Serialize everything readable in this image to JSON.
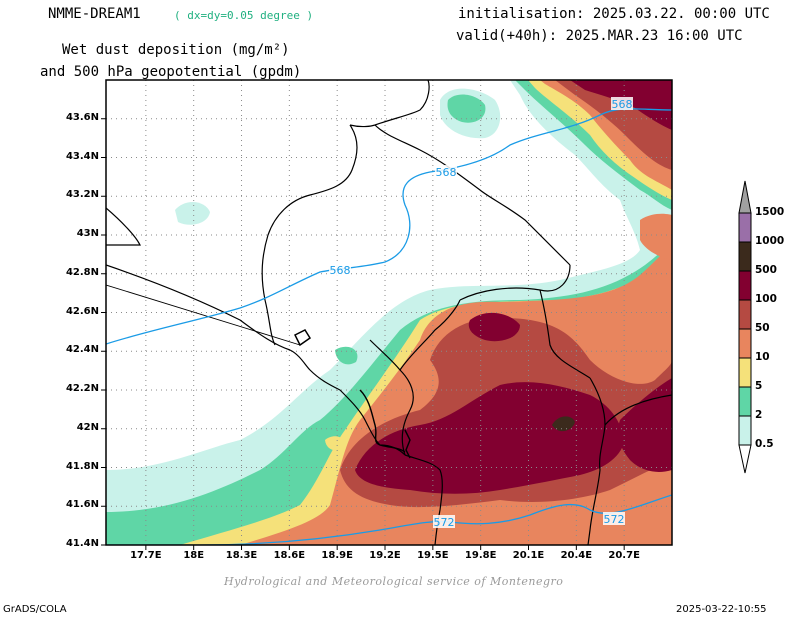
{
  "header": {
    "model": "NMME-DREAM1",
    "resolution": "( dx=dy=0.05 degree )",
    "title_line1": "Wet dust deposition (mg/m²)",
    "title_line2": "and 500 hPa geopotential (gpdm)",
    "init": "initialisation: 2025.03.22. 00:00 UTC",
    "valid": "valid(+40h): 2025.MAR.23 16:00 UTC"
  },
  "axes": {
    "lat_labels": [
      "43.6N",
      "43.4N",
      "43.2N",
      "43N",
      "42.8N",
      "42.6N",
      "42.4N",
      "42.2N",
      "42N",
      "41.8N",
      "41.6N",
      "41.4N"
    ],
    "lat_values": [
      43.6,
      43.4,
      43.2,
      43.0,
      42.8,
      42.6,
      42.4,
      42.2,
      42.0,
      41.8,
      41.6,
      41.4
    ],
    "lon_labels": [
      "17.7E",
      "18E",
      "18.3E",
      "18.6E",
      "18.9E",
      "19.2E",
      "19.5E",
      "19.8E",
      "20.1E",
      "20.4E",
      "20.7E"
    ],
    "lon_values": [
      17.7,
      18.0,
      18.3,
      18.6,
      18.9,
      19.2,
      19.5,
      19.8,
      20.1,
      20.4,
      20.7
    ],
    "lon_range": [
      17.45,
      21.0
    ],
    "lat_range": [
      41.4,
      43.8
    ],
    "grid": true
  },
  "contours": {
    "labels": [
      "568",
      "568",
      "568",
      "572",
      "572"
    ],
    "color": "#1a9be6"
  },
  "legend": {
    "levels": [
      "1500",
      "1000",
      "500",
      "100",
      "50",
      "10",
      "5",
      "2",
      "0.5"
    ],
    "colors": [
      "#a0a0a0",
      "#9a6fa8",
      "#3b2a1c",
      "#820030",
      "#b54a42",
      "#e8855e",
      "#f5e17a",
      "#5fd6a6",
      "#c9f2ea"
    ]
  },
  "palette": {
    "c05": "#c9f2ea",
    "c2": "#5fd6a6",
    "c5": "#f5e17a",
    "c10": "#e8855e",
    "c50": "#b54a42",
    "c100": "#820030",
    "c500": "#3b2a1c"
  },
  "footer": {
    "credit": "Hydrological and Meteorological service of Montenegro",
    "left": "GrADS/COLA",
    "right": "2025-03-22-10:55"
  }
}
